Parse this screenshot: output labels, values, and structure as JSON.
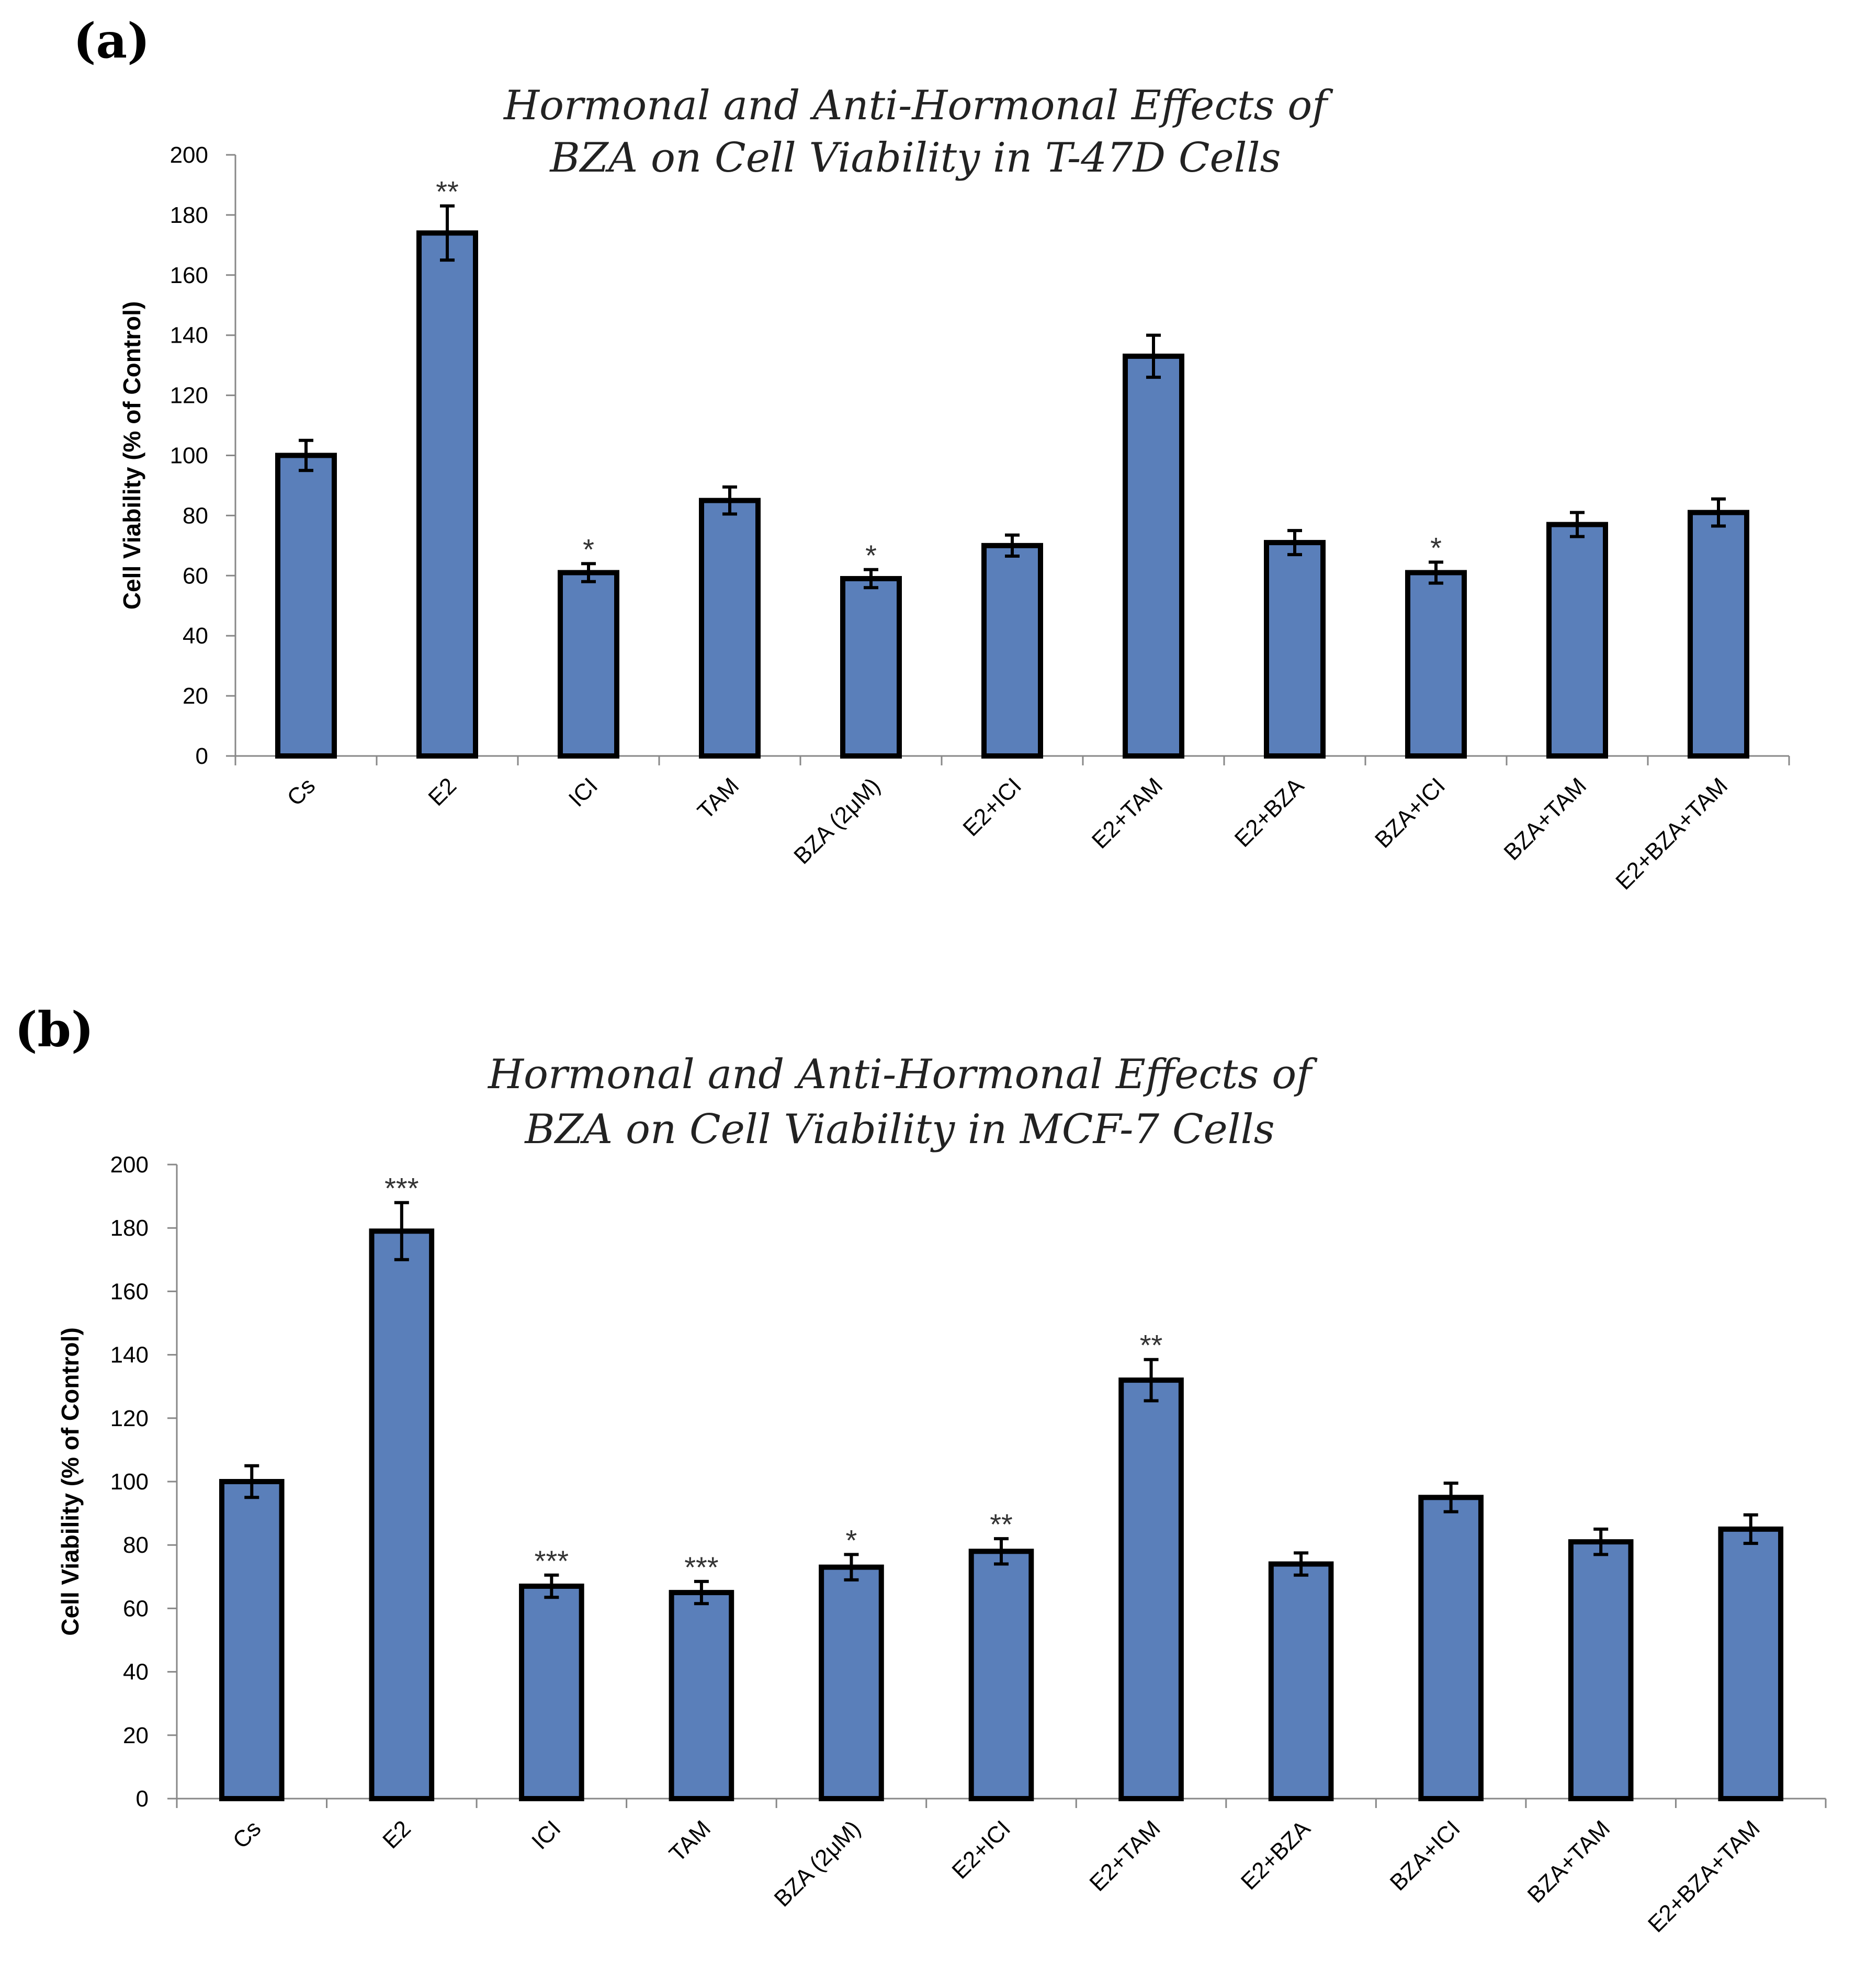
{
  "chart_data": [
    {
      "type": "bar",
      "panel_label": "(a)",
      "title_lines": [
        "Hormonal and Anti-Hormonal Effects of",
        "BZA on Cell Viability in T-47D Cells"
      ],
      "ylabel": "Cell Viability (% of Control)",
      "xlabel": "",
      "ylim": [
        0,
        200
      ],
      "yticks": [
        0,
        20,
        40,
        60,
        80,
        100,
        120,
        140,
        160,
        180,
        200
      ],
      "categories": [
        "Cs",
        "E2",
        "ICI",
        "TAM",
        "BZA (2μM)",
        "E2+ICI",
        "E2+TAM",
        "E2+BZA",
        "BZA+ICI",
        "BZA+TAM",
        "E2+BZA+TAM"
      ],
      "values": [
        100,
        174,
        61,
        85,
        59,
        70,
        133,
        71,
        61,
        77,
        81
      ],
      "errors": [
        5,
        9,
        3,
        4.5,
        3,
        3.5,
        7,
        4,
        3.5,
        4,
        4.5
      ],
      "significance": [
        "",
        "**",
        "*",
        "",
        "*",
        "",
        "",
        "",
        "*",
        "",
        ""
      ],
      "bar_color": "#5a7fba"
    },
    {
      "type": "bar",
      "panel_label": "(b)",
      "title_lines": [
        "Hormonal and Anti-Hormonal Effects of",
        "BZA on Cell Viability in MCF-7 Cells"
      ],
      "ylabel": "Cell Viability (% of Control)",
      "xlabel": "",
      "ylim": [
        0,
        200
      ],
      "yticks": [
        0,
        20,
        40,
        60,
        80,
        100,
        120,
        140,
        160,
        180,
        200
      ],
      "categories": [
        "Cs",
        "E2",
        "ICI",
        "TAM",
        "BZA (2μM)",
        "E2+ICI",
        "E2+TAM",
        "E2+BZA",
        "BZA+ICI",
        "BZA+TAM",
        "E2+BZA+TAM"
      ],
      "values": [
        100,
        179,
        67,
        65,
        73,
        78,
        132,
        74,
        95,
        81,
        85
      ],
      "errors": [
        5,
        9,
        3.5,
        3.5,
        4,
        4,
        6.5,
        3.5,
        4.5,
        4,
        4.5
      ],
      "significance": [
        "",
        "***",
        "***",
        "***",
        "*",
        "**",
        "**",
        "",
        "",
        "",
        ""
      ],
      "bar_color": "#5a7fba"
    }
  ]
}
